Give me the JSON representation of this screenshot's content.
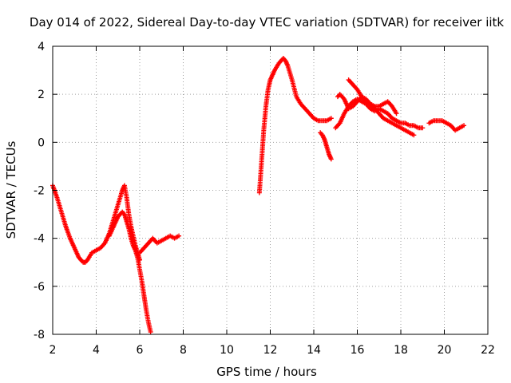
{
  "chart_data": {
    "type": "scatter",
    "title": "Day 014 of 2022, Sidereal Day-to-day VTEC variation (SDTVAR) for receiver iitk",
    "xlabel": "GPS time / hours",
    "ylabel": "SDTVAR / TECUs",
    "xlim": [
      2,
      22
    ],
    "ylim": [
      -8,
      4
    ],
    "xticks": [
      "2",
      "4",
      "6",
      "8",
      "10",
      "12",
      "14",
      "16",
      "18",
      "20",
      "22"
    ],
    "yticks": [
      "-8",
      "-6",
      "-4",
      "-2",
      "0",
      "2",
      "4"
    ],
    "grid": true,
    "marker": "plus",
    "color": "#ff0000",
    "series": [
      {
        "name": "seg1",
        "x": [
          2.0,
          2.2,
          2.4,
          2.6,
          2.8,
          3.0,
          3.2,
          3.4,
          3.5,
          3.6,
          3.8,
          4.0,
          4.2,
          4.4,
          4.6,
          4.8,
          5.0,
          5.2,
          5.3,
          5.4,
          5.5,
          5.6,
          5.7,
          5.8,
          5.9,
          6.0
        ],
        "y": [
          -1.8,
          -2.3,
          -2.9,
          -3.5,
          -4.0,
          -4.4,
          -4.8,
          -5.0,
          -5.0,
          -4.9,
          -4.6,
          -4.5,
          -4.4,
          -4.2,
          -3.8,
          -3.2,
          -2.6,
          -2.0,
          -1.8,
          -2.3,
          -3.0,
          -3.5,
          -3.9,
          -4.3,
          -4.6,
          -4.9
        ]
      },
      {
        "name": "seg2",
        "x": [
          4.6,
          4.8,
          5.0,
          5.2,
          5.3,
          5.4,
          5.5,
          5.6,
          5.7,
          5.8,
          5.9,
          6.0,
          6.1,
          6.2,
          6.3,
          6.4,
          6.5
        ],
        "y": [
          -3.9,
          -3.5,
          -3.1,
          -2.9,
          -3.0,
          -3.3,
          -3.6,
          -4.0,
          -4.3,
          -4.5,
          -4.8,
          -5.3,
          -5.8,
          -6.4,
          -7.0,
          -7.5,
          -7.9
        ]
      },
      {
        "name": "seg3",
        "x": [
          6.0,
          6.2,
          6.4,
          6.6,
          6.8,
          7.0,
          7.2,
          7.4,
          7.6,
          7.8
        ],
        "y": [
          -4.6,
          -4.4,
          -4.2,
          -4.0,
          -4.2,
          -4.1,
          -4.0,
          -3.9,
          -4.0,
          -3.9
        ]
      },
      {
        "name": "seg4",
        "x": [
          11.5,
          11.6,
          11.7,
          11.8,
          11.9,
          12.0,
          12.2,
          12.4,
          12.6,
          12.7,
          12.8,
          13.0,
          13.2,
          13.4,
          13.6,
          13.8,
          14.0,
          14.2,
          14.4,
          14.6,
          14.8
        ],
        "y": [
          -2.1,
          -0.8,
          0.5,
          1.5,
          2.2,
          2.6,
          3.0,
          3.3,
          3.5,
          3.4,
          3.2,
          2.6,
          1.9,
          1.6,
          1.4,
          1.2,
          1.0,
          0.9,
          0.9,
          0.9,
          1.0
        ]
      },
      {
        "name": "seg5",
        "x": [
          14.3,
          14.4,
          14.5,
          14.6,
          14.7,
          14.8
        ],
        "y": [
          0.4,
          0.3,
          0.1,
          -0.2,
          -0.5,
          -0.7
        ]
      },
      {
        "name": "seg6",
        "x": [
          15.0,
          15.2,
          15.4,
          15.6,
          15.8,
          16.0,
          16.2,
          16.4,
          16.6,
          16.8,
          17.0,
          17.2,
          17.4,
          17.6,
          17.8,
          18.0,
          18.2,
          18.4,
          18.6,
          18.8,
          19.0
        ],
        "y": [
          0.6,
          0.8,
          1.2,
          1.5,
          1.7,
          1.8,
          1.7,
          1.6,
          1.4,
          1.3,
          1.4,
          1.3,
          1.2,
          1.0,
          0.9,
          0.8,
          0.8,
          0.7,
          0.7,
          0.6,
          0.6
        ]
      },
      {
        "name": "seg7",
        "x": [
          15.1,
          15.2,
          15.4,
          15.6,
          15.8,
          16.0,
          16.2,
          16.4,
          16.6,
          16.8,
          17.0,
          17.2,
          17.4,
          17.6,
          17.8,
          18.0,
          18.2,
          18.4,
          18.6
        ],
        "y": [
          1.9,
          2.0,
          1.8,
          1.4,
          1.5,
          1.7,
          1.9,
          1.8,
          1.6,
          1.4,
          1.2,
          1.0,
          0.9,
          0.8,
          0.7,
          0.6,
          0.5,
          0.4,
          0.3
        ]
      },
      {
        "name": "seg8",
        "x": [
          15.6,
          15.8,
          16.0,
          16.2,
          16.4,
          16.6,
          16.8,
          17.0,
          17.2,
          17.4,
          17.6,
          17.8
        ],
        "y": [
          2.6,
          2.4,
          2.2,
          1.9,
          1.7,
          1.6,
          1.5,
          1.5,
          1.6,
          1.7,
          1.5,
          1.2
        ]
      },
      {
        "name": "seg9",
        "x": [
          19.3,
          19.5,
          19.7,
          19.9,
          20.1,
          20.3,
          20.5,
          20.7,
          20.9
        ],
        "y": [
          0.8,
          0.9,
          0.9,
          0.9,
          0.8,
          0.7,
          0.5,
          0.6,
          0.7
        ]
      }
    ]
  }
}
